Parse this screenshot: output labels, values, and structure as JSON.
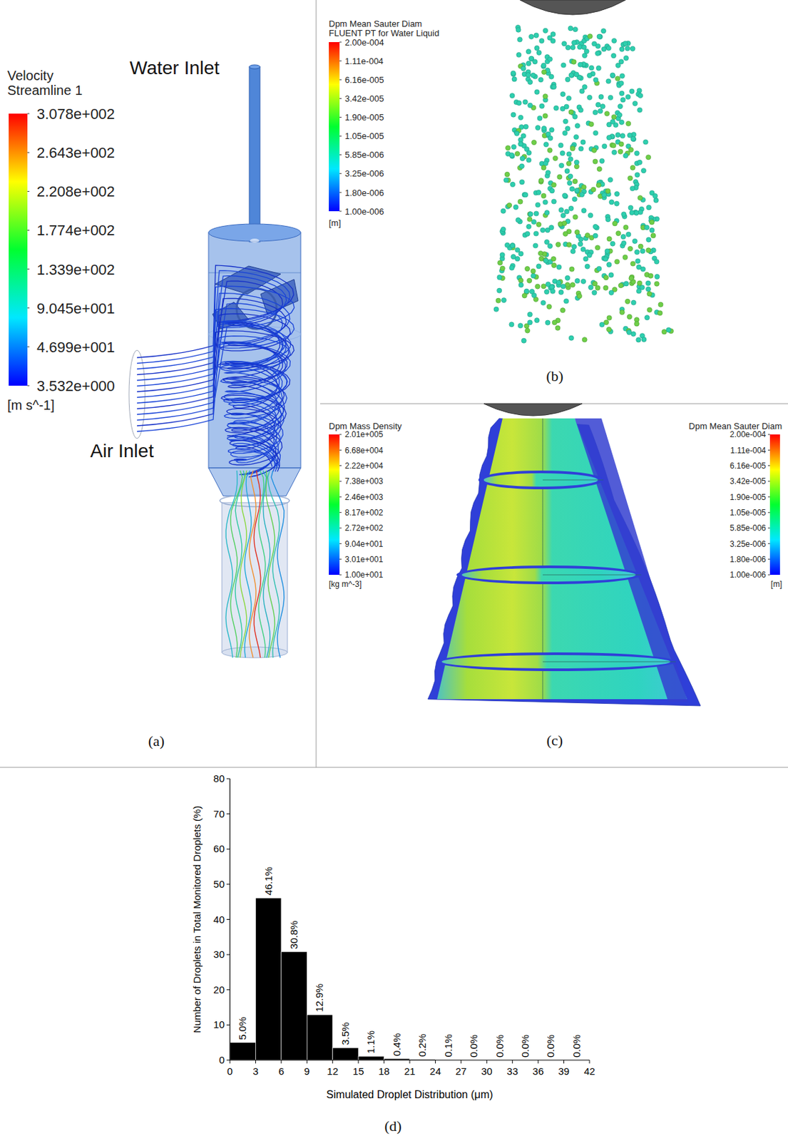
{
  "chart_data": {
    "type": "histogram",
    "panel_label": "(d)",
    "x_label": "Simulated Droplet Distribution (μm)",
    "y_label": "Number of Droplets in Total Monitored Droplets (%)",
    "bins": [
      0,
      3,
      6,
      9,
      12,
      15,
      18,
      21,
      24,
      27,
      30,
      33,
      36,
      39,
      42
    ],
    "values": [
      5.0,
      46.1,
      30.8,
      12.9,
      3.5,
      1.1,
      0.4,
      0.2,
      0.1,
      0.0,
      0.0,
      0.0,
      0.0,
      0.0
    ],
    "value_labels": [
      "5.0%",
      "46.1%",
      "30.8%",
      "12.9%",
      "3.5%",
      "1.1%",
      "0.4%",
      "0.2%",
      "0.1%",
      "0.0%",
      "0.0%",
      "0.0%",
      "0.0%",
      "0.0%"
    ],
    "color": "#000000",
    "data_labels": true,
    "grid": false,
    "xlim": [
      0,
      42
    ],
    "ylim": [
      0,
      80
    ],
    "xticks": [
      0,
      3,
      6,
      9,
      12,
      15,
      18,
      21,
      24,
      27,
      30,
      33,
      36,
      39,
      42
    ],
    "yticks": [
      0,
      10,
      20,
      30,
      40,
      50,
      60,
      70,
      80
    ]
  },
  "panels": [
    {
      "panel_label": "(a)",
      "annotations": [
        "Water Inlet",
        "Air Inlet"
      ],
      "colorbar": {
        "title": [
          "Velocity",
          "Streamline 1"
        ],
        "unit": "[m s^-1]",
        "range": [
          3.532,
          307.8
        ],
        "ticks": [
          {
            "value": 307.8,
            "label": "3.078e+002"
          },
          {
            "value": 264.3,
            "label": "2.643e+002"
          },
          {
            "value": 220.8,
            "label": "2.208e+002"
          },
          {
            "value": 177.4,
            "label": "1.774e+002"
          },
          {
            "value": 133.9,
            "label": "1.339e+002"
          },
          {
            "value": 90.45,
            "label": "9.045e+001"
          },
          {
            "value": 46.99,
            "label": "4.699e+001"
          },
          {
            "value": 3.532,
            "label": "3.532e+000"
          }
        ]
      }
    },
    {
      "panel_label": "(b)",
      "colorbar": {
        "title": [
          "Dpm Mean Sauter Diam",
          "FLUENT PT for Water Liquid"
        ],
        "unit": "[m]",
        "log": true,
        "range": [
          1e-06,
          0.0002
        ],
        "ticks": [
          {
            "value": 0.0002,
            "label": "2.00e-004"
          },
          {
            "value": 0.000111,
            "label": "1.11e-004"
          },
          {
            "value": 6.16e-05,
            "label": "6.16e-005"
          },
          {
            "value": 3.42e-05,
            "label": "3.42e-005"
          },
          {
            "value": 1.9e-05,
            "label": "1.90e-005"
          },
          {
            "value": 1.05e-05,
            "label": "1.05e-005"
          },
          {
            "value": 5.85e-06,
            "label": "5.85e-006"
          },
          {
            "value": 3.25e-06,
            "label": "3.25e-006"
          },
          {
            "value": 1.8e-06,
            "label": "1.80e-006"
          },
          {
            "value": 1e-06,
            "label": "1.00e-006"
          }
        ]
      }
    },
    {
      "panel_label": "(c)",
      "colorbars": [
        {
          "title": [
            "Dpm Mass Density"
          ],
          "unit": "[kg m^-3]",
          "log": true,
          "range": [
            10,
            201000
          ],
          "ticks": [
            {
              "value": 201000,
              "label": "2.01e+005"
            },
            {
              "value": 66800,
              "label": "6.68e+004"
            },
            {
              "value": 22200,
              "label": "2.22e+004"
            },
            {
              "value": 7380,
              "label": "7.38e+003"
            },
            {
              "value": 2460,
              "label": "2.46e+003"
            },
            {
              "value": 817,
              "label": "8.17e+002"
            },
            {
              "value": 272,
              "label": "2.72e+002"
            },
            {
              "value": 90.4,
              "label": "9.04e+001"
            },
            {
              "value": 30.1,
              "label": "3.01e+001"
            },
            {
              "value": 10,
              "label": "1.00e+001"
            }
          ]
        },
        {
          "title": [
            "Dpm Mean Sauter Diam"
          ],
          "unit": "[m]",
          "log": true,
          "range": [
            1e-06,
            0.0002
          ],
          "ticks": [
            {
              "value": 0.0002,
              "label": "2.00e-004"
            },
            {
              "value": 0.000111,
              "label": "1.11e-004"
            },
            {
              "value": 6.16e-05,
              "label": "6.16e-005"
            },
            {
              "value": 3.42e-05,
              "label": "3.42e-005"
            },
            {
              "value": 1.9e-05,
              "label": "1.90e-005"
            },
            {
              "value": 1.05e-05,
              "label": "1.05e-005"
            },
            {
              "value": 5.85e-06,
              "label": "5.85e-006"
            },
            {
              "value": 3.25e-06,
              "label": "3.25e-006"
            },
            {
              "value": 1.8e-06,
              "label": "1.80e-006"
            },
            {
              "value": 1e-06,
              "label": "1.00e-006"
            }
          ]
        }
      ]
    }
  ]
}
